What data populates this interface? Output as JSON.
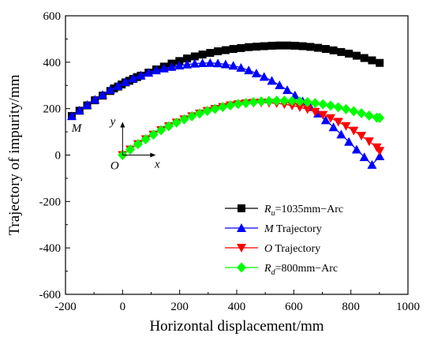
{
  "chart_data": {
    "type": "scatter",
    "title": "",
    "xlabel": "Horizontal displacement/mm",
    "ylabel": "Trajectory of impurity/mm",
    "xlim": [
      -200,
      1000
    ],
    "ylim": [
      -600,
      600
    ],
    "xticks": [
      "-200",
      "0",
      "200",
      "400",
      "600",
      "800",
      "1000"
    ],
    "yticks": [
      "600",
      "400",
      "200",
      "0",
      "-200",
      "-400",
      "-600"
    ],
    "grid": false,
    "legend_position": "lower-right",
    "legend": [
      {
        "main": "R",
        "sub": "u",
        "rest": "=1035mm−Arc"
      },
      {
        "main": "M",
        "sub": "",
        "rest": "  Trajectory"
      },
      {
        "main": "O",
        "sub": "",
        "rest": "  Trajectory"
      },
      {
        "main": "R",
        "sub": "d",
        "rest": "=800mm−Arc"
      }
    ],
    "annotations": {
      "point_M": "M",
      "origin_O": "O",
      "axis_x": "x",
      "axis_y": "y"
    },
    "series": [
      {
        "color": "#000000",
        "marker": "square",
        "x": [
          -178,
          -151,
          -124,
          -97,
          -70,
          -43,
          -30,
          -16,
          -3,
          10,
          24,
          37,
          51,
          64,
          91,
          118,
          145,
          172,
          199,
          226,
          253,
          280,
          307,
          334,
          361,
          388,
          415,
          442,
          469,
          496,
          523,
          550,
          577,
          604,
          631,
          658,
          685,
          712,
          739,
          766,
          793,
          820,
          847,
          874,
          901
        ],
        "y": [
          168,
          191,
          214,
          236,
          256,
          276,
          287,
          295,
          304,
          313,
          320,
          328,
          336,
          342,
          355,
          369,
          381,
          394,
          405,
          416,
          425,
          433,
          440,
          447,
          452,
          457,
          461,
          465,
          467,
          469,
          471,
          472,
          472,
          471,
          469,
          466,
          462,
          457,
          451,
          444,
          437,
          428,
          418,
          408,
          397
        ]
      },
      {
        "color": "#0000ff",
        "marker": "triangle-up",
        "x": [
          -178,
          -151,
          -124,
          -97,
          -70,
          -43,
          -16,
          10,
          37,
          64,
          91,
          118,
          145,
          172,
          199,
          226,
          253,
          280,
          307,
          334,
          361,
          388,
          415,
          442,
          469,
          496,
          523,
          550,
          577,
          604,
          631,
          658,
          685,
          712,
          739,
          766,
          793,
          820,
          847,
          874,
          901
        ],
        "y": [
          168,
          192,
          216,
          239,
          259,
          281,
          298,
          315,
          330,
          343,
          355,
          365,
          373,
          380,
          386,
          390,
          394,
          396,
          397,
          395,
          391,
          385,
          376,
          365,
          352,
          337,
          320,
          301,
          280,
          257,
          232,
          206,
          179,
          150,
          120,
          89,
          57,
          24,
          -9,
          -42,
          -5
        ]
      },
      {
        "color": "#ff0000",
        "marker": "triangle-down",
        "x": [
          0,
          27,
          54,
          81,
          108,
          135,
          162,
          189,
          216,
          243,
          270,
          297,
          324,
          351,
          378,
          405,
          432,
          459,
          486,
          513,
          540,
          567,
          594,
          621,
          648,
          675,
          702,
          729,
          756,
          783,
          810,
          837,
          864,
          891,
          901
        ],
        "y": [
          0,
          24,
          47,
          68,
          88,
          107,
          124,
          140,
          154,
          167,
          179,
          190,
          199,
          207,
          214,
          219,
          223,
          225,
          226,
          225,
          223,
          219,
          213,
          206,
          197,
          186,
          173,
          159,
          143,
          125,
          105,
          83,
          59,
          33,
          18
        ]
      },
      {
        "color": "#00ff00",
        "marker": "diamond",
        "x": [
          0,
          27,
          54,
          81,
          108,
          135,
          162,
          189,
          216,
          243,
          270,
          297,
          324,
          351,
          378,
          405,
          432,
          459,
          486,
          513,
          540,
          567,
          594,
          621,
          648,
          675,
          702,
          729,
          756,
          783,
          810,
          837,
          864,
          891,
          901
        ],
        "y": [
          0,
          24,
          47,
          68,
          88,
          107,
          124,
          140,
          154,
          167,
          179,
          190,
          199,
          207,
          214,
          220,
          224,
          228,
          231,
          233,
          234,
          234,
          233,
          231,
          228,
          224,
          219,
          213,
          206,
          198,
          189,
          180,
          170,
          161,
          160
        ]
      }
    ]
  }
}
